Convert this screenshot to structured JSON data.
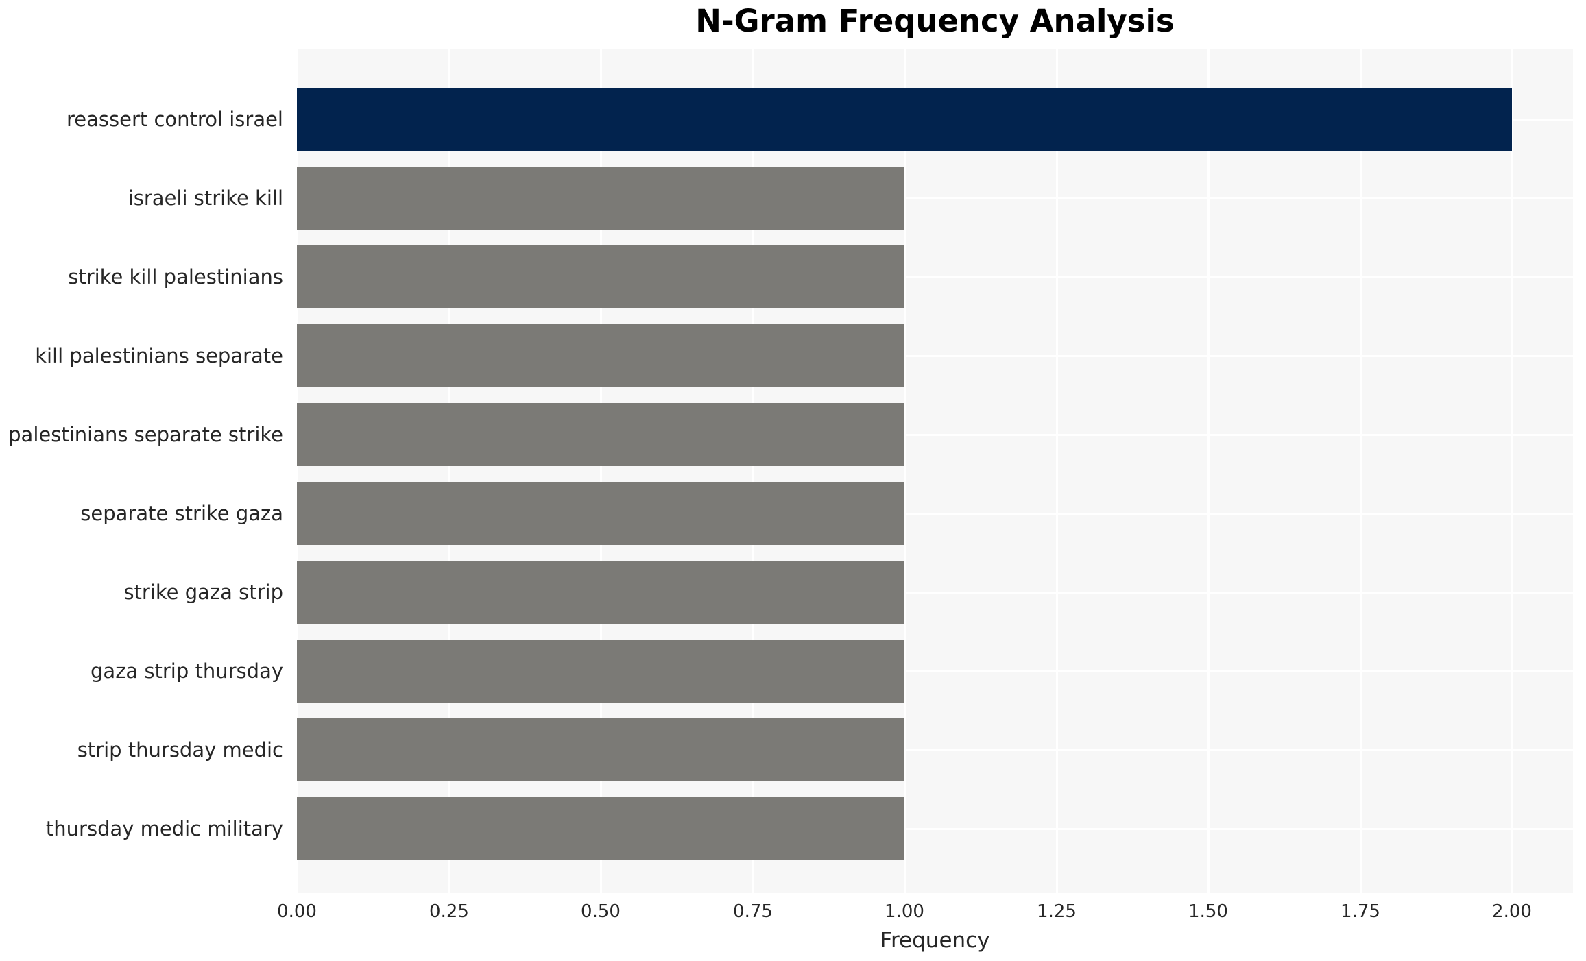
{
  "title": "N-Gram Frequency Analysis",
  "colors": {
    "highlight_bar": "#02234e",
    "default_bar": "#7b7a76",
    "plot_background": "#f7f7f7",
    "gridline": "#ffffff",
    "figure_background": "#ffffff",
    "text": "#262626",
    "title_text": "#000000"
  },
  "chart_data": {
    "type": "bar",
    "orientation": "horizontal",
    "title": "N-Gram Frequency Analysis",
    "xlabel": "Frequency",
    "ylabel": "",
    "categories": [
      "reassert control israel",
      "israeli strike kill",
      "strike kill palestinians",
      "kill palestinians separate",
      "palestinians separate strike",
      "separate strike gaza",
      "strike gaza strip",
      "gaza strip thursday",
      "strip thursday medic",
      "thursday medic military"
    ],
    "values": [
      2.0,
      1.0,
      1.0,
      1.0,
      1.0,
      1.0,
      1.0,
      1.0,
      1.0,
      1.0
    ],
    "bar_colors": [
      "#02234e",
      "#7b7a76",
      "#7b7a76",
      "#7b7a76",
      "#7b7a76",
      "#7b7a76",
      "#7b7a76",
      "#7b7a76",
      "#7b7a76",
      "#7b7a76"
    ],
    "xlim": [
      0,
      2.1
    ],
    "xticks": [
      0.0,
      0.25,
      0.5,
      0.75,
      1.0,
      1.25,
      1.5,
      1.75,
      2.0
    ],
    "xtick_labels": [
      "0.00",
      "0.25",
      "0.50",
      "0.75",
      "1.00",
      "1.25",
      "1.50",
      "1.75",
      "2.00"
    ],
    "grid": true,
    "legend": false
  }
}
